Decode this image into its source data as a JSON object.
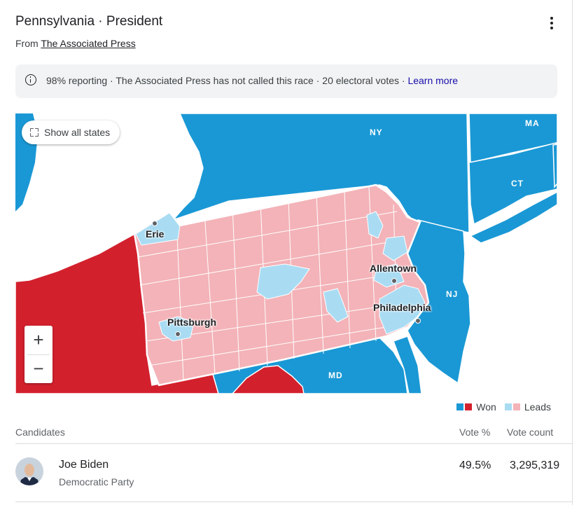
{
  "header": {
    "title": "Pennsylvania · President",
    "source_prefix": "From ",
    "source_link": "The Associated Press",
    "menu_icon": "more-vert-icon"
  },
  "notice": {
    "icon": "info-icon",
    "text": "98% reporting · The Associated Press has not called this race · 20 electoral votes · ",
    "link": "Learn more"
  },
  "map": {
    "show_all_label": "Show all states",
    "zoom_in": "+",
    "zoom_out": "−",
    "cities": [
      "Erie",
      "Allentown",
      "Philadelphia",
      "Pittsburgh"
    ],
    "states": [
      "NY",
      "MA",
      "CT",
      "NJ",
      "MD"
    ],
    "colors": {
      "dem_won": "#1a98d5",
      "rep_won": "#d3202d",
      "dem_leads": "#a9dcf3",
      "rep_leads": "#f3b3b8"
    }
  },
  "legend": {
    "won_label": "Won",
    "leads_label": "Leads"
  },
  "table": {
    "col_candidates": "Candidates",
    "col_vote_pct": "Vote %",
    "col_vote_count": "Vote count",
    "rows": [
      {
        "name": "Joe Biden",
        "party": "Democratic Party",
        "pct": "49.5%",
        "count": "3,295,319"
      }
    ]
  }
}
